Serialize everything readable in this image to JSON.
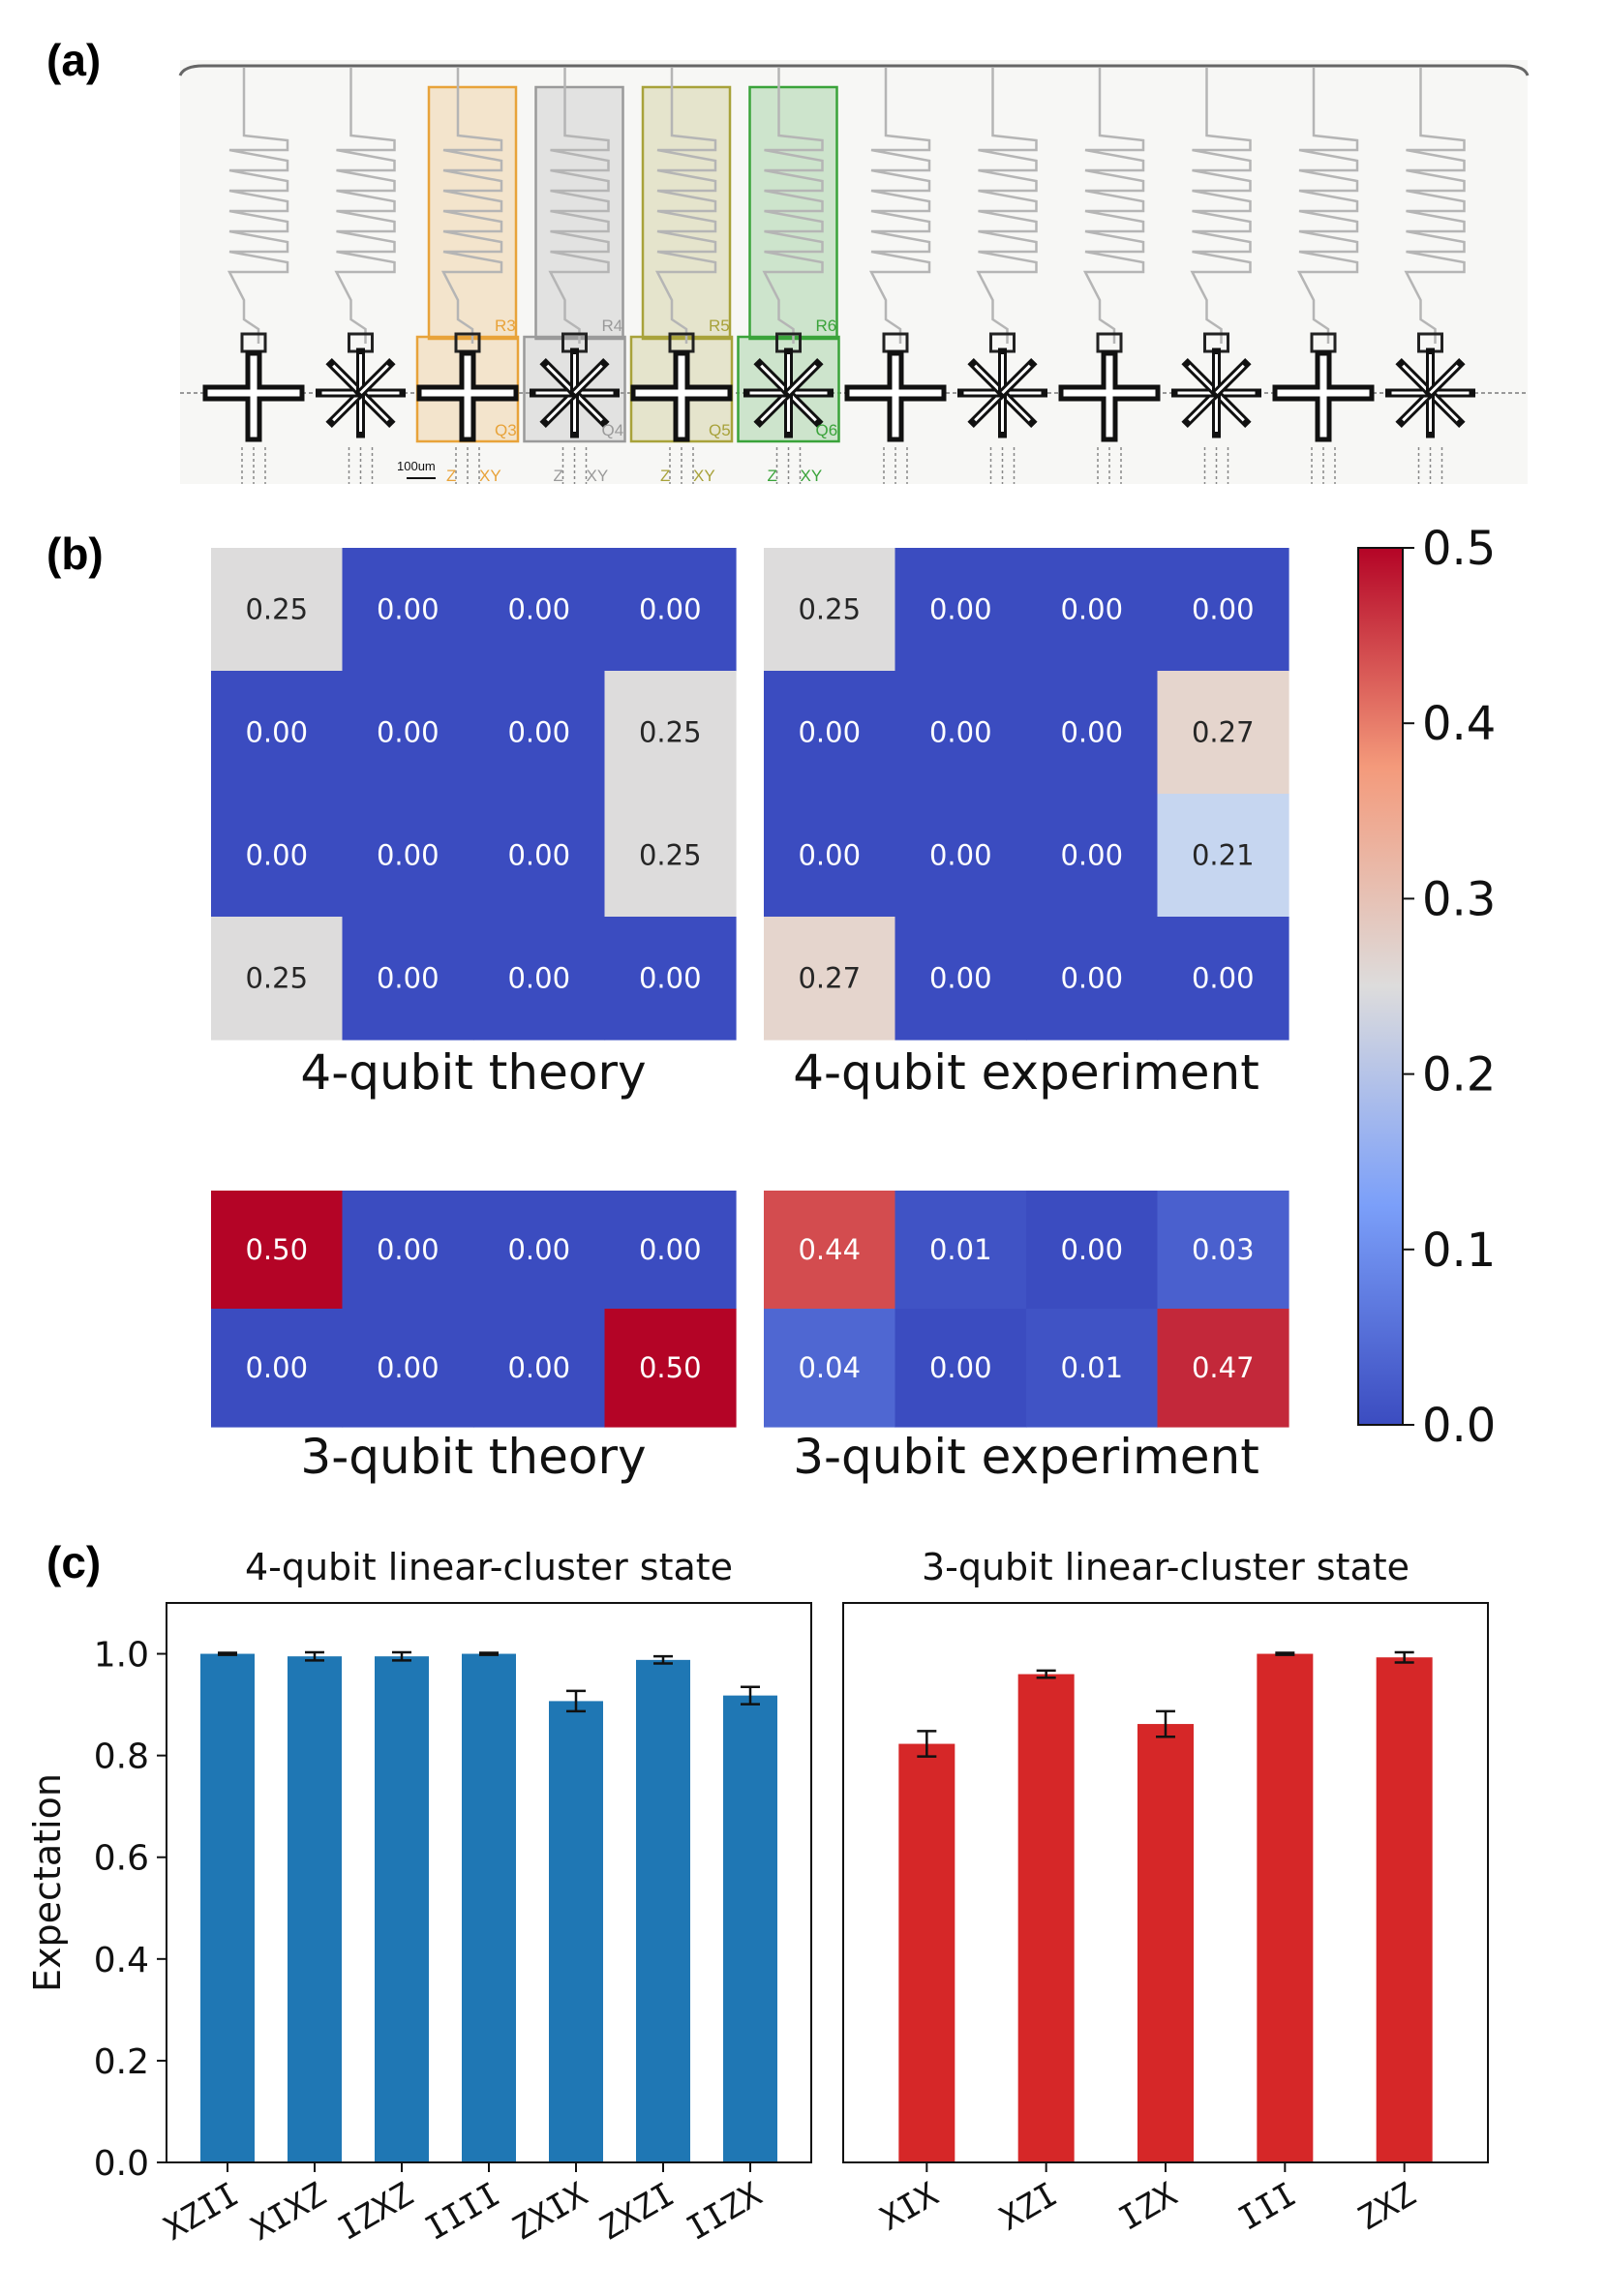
{
  "panels": {
    "a": "(a)",
    "b": "(b)",
    "c": "(c)"
  },
  "chip": {
    "scale_bar": "100um",
    "resonators": [
      "R3",
      "R4",
      "R5",
      "R6"
    ],
    "qubits": [
      "Q3",
      "Q4",
      "Q5",
      "Q6"
    ],
    "z_lines": [
      "Z",
      "Z",
      "Z",
      "Z"
    ],
    "xy_lines": [
      "XY",
      "XY",
      "XY",
      "XY"
    ],
    "colors": [
      "#e8a33a",
      "#9a9a9a",
      "#a8a23a",
      "#3aa33a"
    ]
  },
  "chart_data": [
    {
      "type": "heatmap",
      "title": "4-qubit theory",
      "values": [
        [
          0.25,
          0.0,
          0.0,
          0.0
        ],
        [
          0.0,
          0.0,
          0.0,
          0.25
        ],
        [
          0.0,
          0.0,
          0.0,
          0.25
        ],
        [
          0.25,
          0.0,
          0.0,
          0.0
        ]
      ],
      "labels": [
        [
          "0.25",
          "0.00",
          "0.00",
          "0.00"
        ],
        [
          "0.00",
          "0.00",
          "0.00",
          "0.25"
        ],
        [
          "0.00",
          "0.00",
          "0.00",
          "0.25"
        ],
        [
          "0.25",
          "0.00",
          "0.00",
          "0.00"
        ]
      ]
    },
    {
      "type": "heatmap",
      "title": "4-qubit experiment",
      "values": [
        [
          0.25,
          0.0,
          0.0,
          0.0
        ],
        [
          0.0,
          0.0,
          0.0,
          0.27
        ],
        [
          0.0,
          0.0,
          0.0,
          0.21
        ],
        [
          0.27,
          0.0,
          0.0,
          0.0
        ]
      ],
      "labels": [
        [
          "0.25",
          "0.00",
          "0.00",
          "0.00"
        ],
        [
          "0.00",
          "0.00",
          "0.00",
          "0.27"
        ],
        [
          "0.00",
          "0.00",
          "0.00",
          "0.21"
        ],
        [
          "0.27",
          "0.00",
          "0.00",
          "0.00"
        ]
      ]
    },
    {
      "type": "heatmap",
      "title": "3-qubit theory",
      "values": [
        [
          0.5,
          0.0,
          0.0,
          0.0
        ],
        [
          0.0,
          0.0,
          0.0,
          0.5
        ]
      ],
      "labels": [
        [
          "0.50",
          "0.00",
          "0.00",
          "0.00"
        ],
        [
          "0.00",
          "0.00",
          "0.00",
          "0.50"
        ]
      ]
    },
    {
      "type": "heatmap",
      "title": "3-qubit experiment",
      "values": [
        [
          0.44,
          0.01,
          0.0,
          0.03
        ],
        [
          0.04,
          0.0,
          0.01,
          0.47
        ]
      ],
      "labels": [
        [
          "0.44",
          "0.01",
          "0.00",
          "0.03"
        ],
        [
          "0.04",
          "0.00",
          "0.01",
          "0.47"
        ]
      ]
    },
    {
      "type": "colorbar",
      "colormap": "coolwarm",
      "range": [
        0.0,
        0.5
      ],
      "ticks": [
        "0.0",
        "0.1",
        "0.2",
        "0.3",
        "0.4",
        "0.5"
      ]
    },
    {
      "type": "bar",
      "title": "4-qubit linear-cluster state",
      "categories": [
        "XZII",
        "XIXZ",
        "IZXZ",
        "IIII",
        "ZXIX",
        "ZXZI",
        "IIZX"
      ],
      "values": [
        1.0,
        0.995,
        0.995,
        1.0,
        0.907,
        0.988,
        0.918
      ],
      "errors": [
        0.002,
        0.008,
        0.008,
        0.002,
        0.02,
        0.007,
        0.017
      ],
      "ylabel": "Expectation",
      "ylim": [
        0.0,
        1.1
      ],
      "yticks": [
        "0.0",
        "0.2",
        "0.4",
        "0.6",
        "0.8",
        "1.0"
      ],
      "color": "#1f77b4"
    },
    {
      "type": "bar",
      "title": "3-qubit linear-cluster state",
      "categories": [
        "XIX",
        "XZI",
        "IZX",
        "III",
        "ZXZ"
      ],
      "values": [
        0.823,
        0.96,
        0.862,
        1.0,
        0.993
      ],
      "errors": [
        0.025,
        0.007,
        0.025,
        0.002,
        0.01
      ],
      "ylim": [
        0.0,
        1.1
      ],
      "color": "#d62728"
    }
  ]
}
